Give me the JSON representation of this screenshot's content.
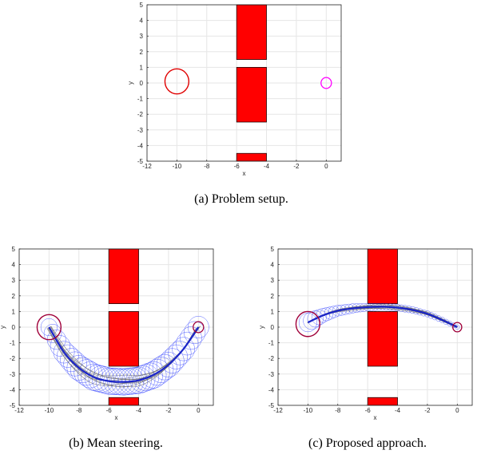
{
  "colors": {
    "obstacle": "#ff0000",
    "start": "#e00000",
    "goal": "#ff00ff",
    "mean_path": "#1a24c8",
    "covariance": "#2233ff",
    "samples": "#606060",
    "start_dark": "#a0003a"
  },
  "captions": {
    "a": "(a) Problem setup.",
    "b": "(b) Mean steering.",
    "c": "(c) Proposed approach."
  },
  "chart_data": [
    {
      "id": "a",
      "type": "scatter",
      "title": "",
      "xlabel": "x",
      "ylabel": "y",
      "xlim": [
        -12,
        1
      ],
      "ylim": [
        -5,
        5
      ],
      "xticks": [
        "-12",
        "-10",
        "-8",
        "-6",
        "-4",
        "-2",
        "0"
      ],
      "yticks": [
        "-5",
        "-4",
        "-3",
        "-2",
        "-1",
        "0",
        "1",
        "2",
        "3",
        "4",
        "5"
      ],
      "grid": true,
      "obstacles": [
        {
          "x0": -6,
          "x1": -4,
          "y0": 1.5,
          "y1": 5
        },
        {
          "x0": -6,
          "x1": -4,
          "y0": -2.5,
          "y1": 1
        },
        {
          "x0": -6,
          "x1": -4,
          "y0": -5,
          "y1": -4.5
        }
      ],
      "start": {
        "x": -10,
        "y": 0.1,
        "r": 0.8
      },
      "goal": {
        "x": 0,
        "y": 0,
        "r": 0.35
      }
    },
    {
      "id": "b",
      "type": "line",
      "title": "",
      "xlabel": "x",
      "ylabel": "y",
      "xlim": [
        -12,
        1
      ],
      "ylim": [
        -5,
        5
      ],
      "xticks": [
        "-12",
        "-10",
        "-8",
        "-6",
        "-4",
        "-2",
        "0"
      ],
      "yticks": [
        "-5",
        "-4",
        "-3",
        "-2",
        "-1",
        "0",
        "1",
        "2",
        "3",
        "4",
        "5"
      ],
      "grid": true,
      "obstacles": [
        {
          "x0": -6,
          "x1": -4,
          "y0": 1.5,
          "y1": 5
        },
        {
          "x0": -6,
          "x1": -4,
          "y0": -2.5,
          "y1": 1
        },
        {
          "x0": -6,
          "x1": -4,
          "y0": -5,
          "y1": -4.5
        }
      ],
      "start": {
        "x": -10,
        "y": 0,
        "r": 0.8
      },
      "goal": {
        "x": 0,
        "y": 0,
        "r": 0.35
      },
      "mean_path": [
        [
          -10,
          0
        ],
        [
          -9,
          -1.6
        ],
        [
          -8,
          -2.6
        ],
        [
          -7,
          -3.2
        ],
        [
          -6,
          -3.45
        ],
        [
          -5,
          -3.5
        ],
        [
          -4,
          -3.4
        ],
        [
          -3,
          -3.05
        ],
        [
          -2,
          -2.4
        ],
        [
          -1,
          -1.4
        ],
        [
          0,
          0
        ]
      ],
      "covariance_radius": [
        0.55,
        0.7,
        0.8,
        0.85,
        0.85,
        0.85,
        0.85,
        0.85,
        0.8,
        0.75,
        0.7
      ],
      "sample_spread": 0.35
    },
    {
      "id": "c",
      "type": "line",
      "title": "",
      "xlabel": "x",
      "ylabel": "y",
      "xlim": [
        -12,
        1
      ],
      "ylim": [
        -5,
        5
      ],
      "xticks": [
        "-12",
        "-10",
        "-8",
        "-6",
        "-4",
        "-2",
        "0"
      ],
      "yticks": [
        "-5",
        "-4",
        "-3",
        "-2",
        "-1",
        "0",
        "1",
        "2",
        "3",
        "4",
        "5"
      ],
      "grid": true,
      "obstacles": [
        {
          "x0": -6,
          "x1": -4,
          "y0": 1.5,
          "y1": 5
        },
        {
          "x0": -6,
          "x1": -4,
          "y0": -2.5,
          "y1": 1
        },
        {
          "x0": -6,
          "x1": -4,
          "y0": -5,
          "y1": -4.5
        }
      ],
      "start": {
        "x": -10,
        "y": 0.2,
        "r": 0.8
      },
      "goal": {
        "x": 0,
        "y": 0,
        "r": 0.3
      },
      "mean_path": [
        [
          -10,
          0.3
        ],
        [
          -9,
          0.75
        ],
        [
          -8,
          1.05
        ],
        [
          -7,
          1.2
        ],
        [
          -6,
          1.28
        ],
        [
          -5,
          1.3
        ],
        [
          -4,
          1.25
        ],
        [
          -3,
          1.1
        ],
        [
          -2,
          0.85
        ],
        [
          -1,
          0.45
        ],
        [
          0,
          0
        ]
      ],
      "covariance_radius": [
        0.6,
        0.45,
        0.35,
        0.3,
        0.25,
        0.22,
        0.22,
        0.22,
        0.2,
        0.18,
        0.15
      ],
      "sample_spread": 0.12
    }
  ]
}
